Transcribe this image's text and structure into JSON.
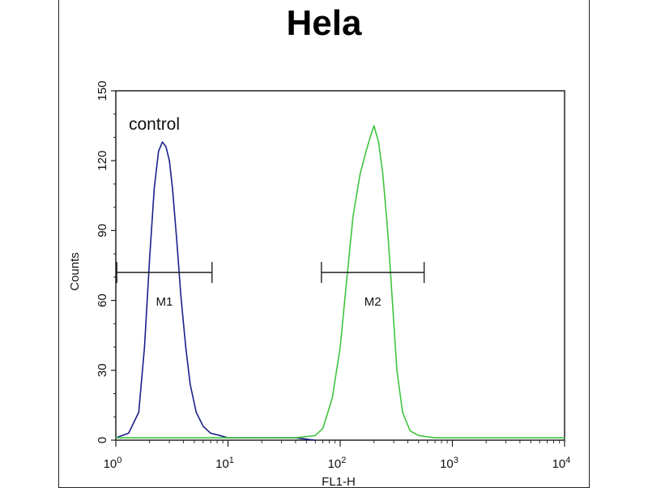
{
  "chart_data": {
    "type": "line",
    "title": "Hela",
    "xlabel": "FL1-H",
    "ylabel": "Counts",
    "xscale": "log",
    "xlim": [
      1,
      10000
    ],
    "ylim": [
      0,
      150
    ],
    "x_ticks": [
      {
        "base": "10",
        "exp": "0",
        "value": 1
      },
      {
        "base": "10",
        "exp": "1",
        "value": 10
      },
      {
        "base": "10",
        "exp": "2",
        "value": 100
      },
      {
        "base": "10",
        "exp": "3",
        "value": 1000
      },
      {
        "base": "10",
        "exp": "4",
        "value": 10000
      }
    ],
    "y_ticks": [
      "0",
      "30",
      "60",
      "90",
      "120",
      "150"
    ],
    "grid": false,
    "series": [
      {
        "color": "#1a1f8a",
        "x": [
          1.0,
          1.3,
          1.6,
          1.8,
          2.0,
          2.2,
          2.4,
          2.6,
          2.8,
          3.0,
          3.2,
          3.5,
          3.8,
          4.2,
          4.6,
          5.2,
          6.0,
          7.0,
          8.5,
          10,
          15,
          25,
          40,
          60
        ],
        "y": [
          1,
          3,
          12,
          40,
          78,
          108,
          124,
          128,
          126,
          120,
          108,
          85,
          62,
          40,
          24,
          12,
          6,
          3,
          2,
          1,
          1,
          1,
          1,
          0
        ]
      },
      {
        "color": "#3ec43e",
        "x": [
          1,
          10,
          40,
          60,
          70,
          85,
          100,
          115,
          130,
          150,
          170,
          185,
          200,
          220,
          240,
          265,
          290,
          320,
          360,
          420,
          500,
          700,
          1000,
          10000
        ],
        "y": [
          1,
          1,
          1,
          2,
          5,
          18,
          40,
          70,
          96,
          114,
          124,
          130,
          135,
          128,
          114,
          90,
          62,
          30,
          12,
          4,
          2,
          1,
          1,
          1
        ]
      }
    ],
    "annotations": [
      {
        "text": "control"
      },
      {
        "text": "M1",
        "x_range": [
          1.02,
          7.2
        ],
        "y": 72
      },
      {
        "text": "M2",
        "x_range": [
          68,
          560
        ],
        "y": 72
      }
    ]
  }
}
